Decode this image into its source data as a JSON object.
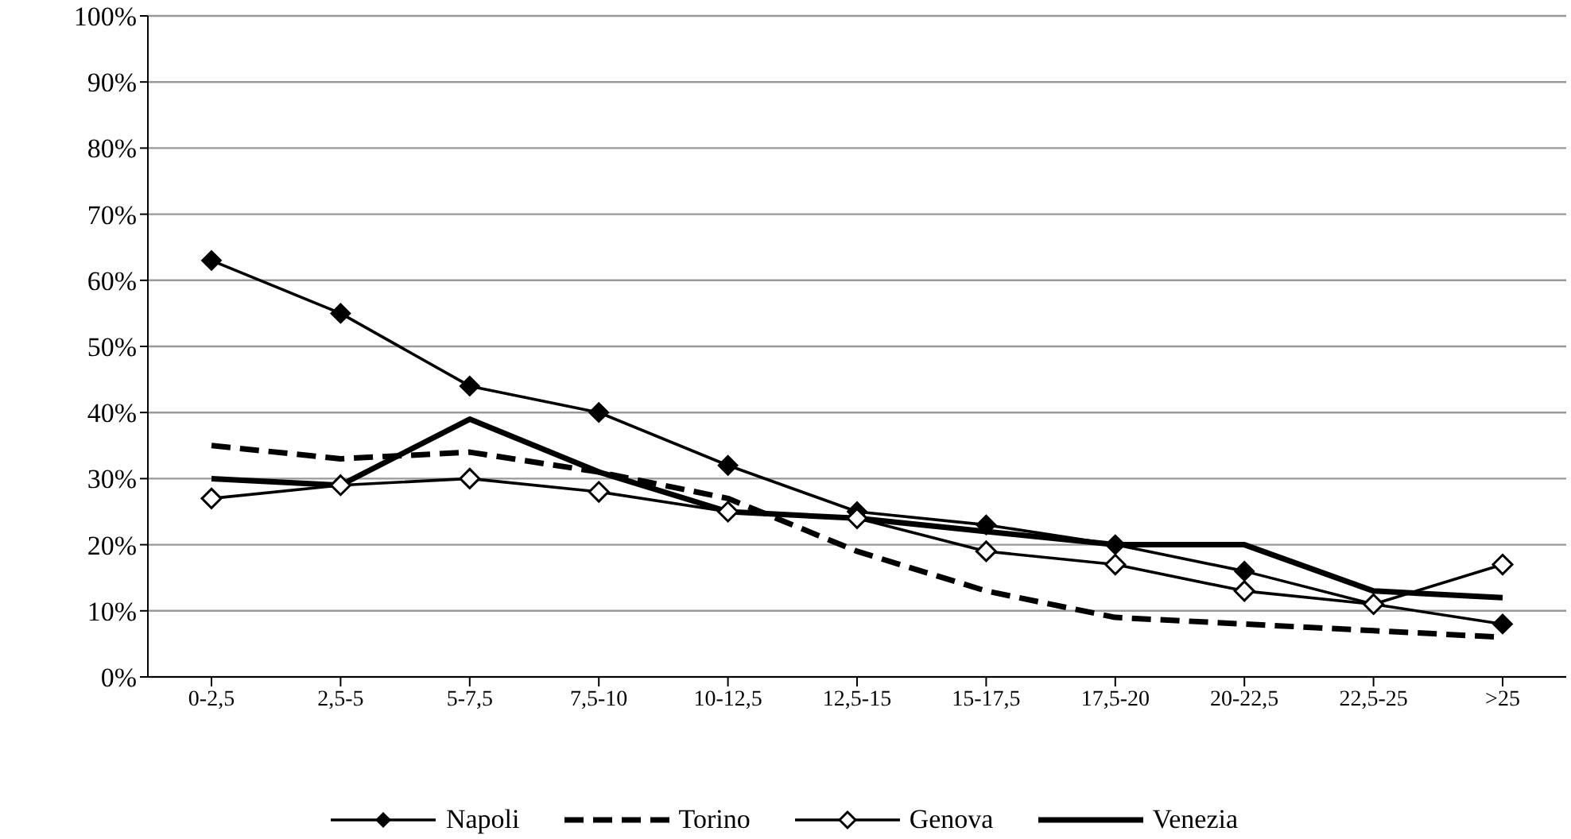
{
  "chart_data": {
    "type": "line",
    "categories": [
      "0-2,5",
      "2,5-5",
      "5-7,5",
      "7,5-10",
      "10-12,5",
      "12,5-15",
      "15-17,5",
      "17,5-20",
      "20-22,5",
      "22,5-25",
      ">25"
    ],
    "series": [
      {
        "name": "Napoli",
        "color": "#000000",
        "marker": "diamond",
        "line_style": "solid",
        "values": [
          63,
          55,
          44,
          40,
          32,
          25,
          23,
          20,
          16,
          11,
          8
        ]
      },
      {
        "name": "Torino",
        "color": "#000000",
        "marker": "none",
        "line_style": "dashed",
        "values": [
          35,
          33,
          34,
          31,
          27,
          19,
          13,
          9,
          8,
          7,
          6
        ]
      },
      {
        "name": "Genova",
        "color": "#000000",
        "marker": "diamond-open",
        "line_style": "solid",
        "values": [
          27,
          29,
          30,
          28,
          25,
          24,
          19,
          17,
          13,
          11,
          17
        ]
      },
      {
        "name": "Venezia",
        "color": "#000000",
        "marker": "none",
        "line_style": "solid",
        "values": [
          30,
          29,
          39,
          31,
          25,
          24,
          22,
          20,
          20,
          13,
          12
        ]
      }
    ],
    "ylim": [
      0,
      100
    ],
    "yticks": [
      {
        "value": 0,
        "label": "0%"
      },
      {
        "value": 10,
        "label": "10%"
      },
      {
        "value": 20,
        "label": "20%"
      },
      {
        "value": 30,
        "label": "30%"
      },
      {
        "value": 40,
        "label": "40%"
      },
      {
        "value": 50,
        "label": "50%"
      },
      {
        "value": 60,
        "label": "60%"
      },
      {
        "value": 70,
        "label": "70%"
      },
      {
        "value": 80,
        "label": "80%"
      },
      {
        "value": 90,
        "label": "90%"
      },
      {
        "value": 100,
        "label": "100%"
      }
    ],
    "grid": "y",
    "legend": "bottom"
  }
}
